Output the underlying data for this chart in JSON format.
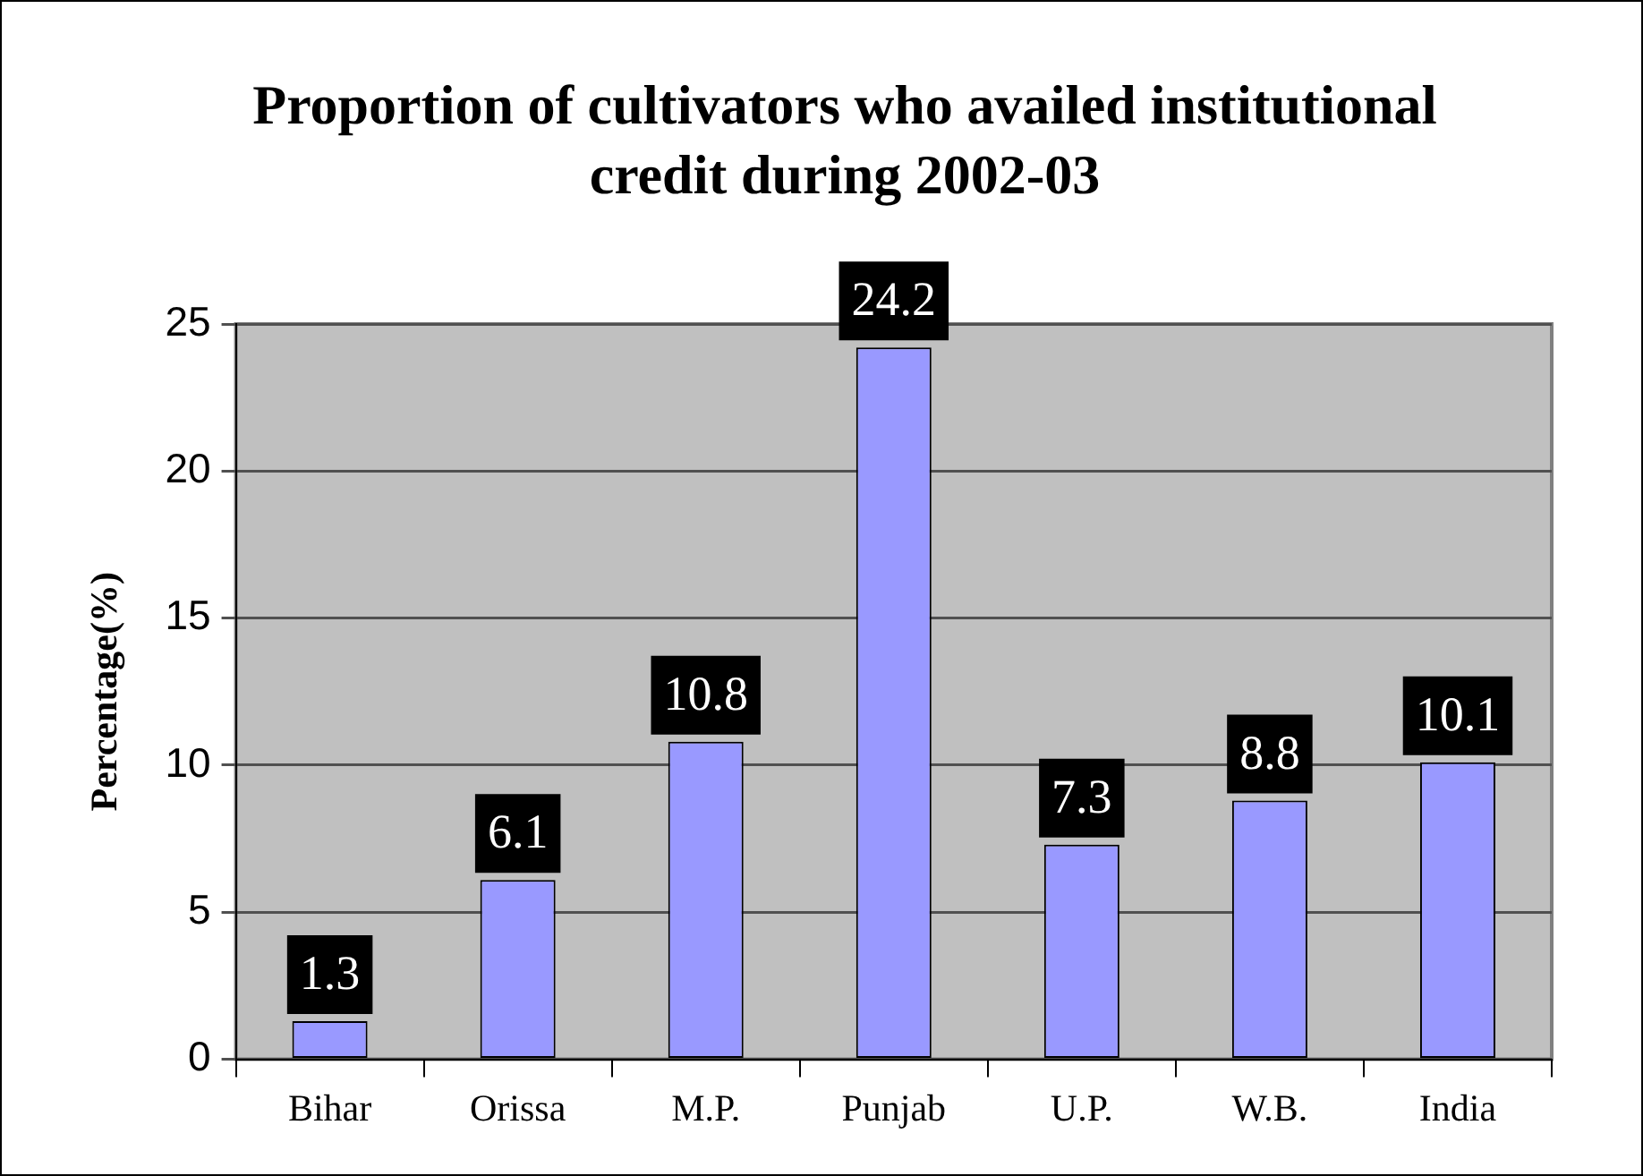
{
  "chart_data": {
    "type": "bar",
    "title": "Proportion of cultivators who availed institutional credit during 2002-03",
    "ylabel": "Percentage(%)",
    "categories": [
      "Bihar",
      "Orissa",
      "M.P.",
      "Punjab",
      "U.P.",
      "W.B.",
      "India"
    ],
    "values": [
      1.3,
      6.1,
      10.8,
      24.2,
      7.3,
      8.8,
      10.1
    ],
    "color": "#9999ff",
    "ylim": [
      0,
      25
    ],
    "yticks": [
      0,
      5,
      10,
      15,
      20,
      25
    ],
    "grid": "y",
    "data_labels": true,
    "legend": false
  }
}
